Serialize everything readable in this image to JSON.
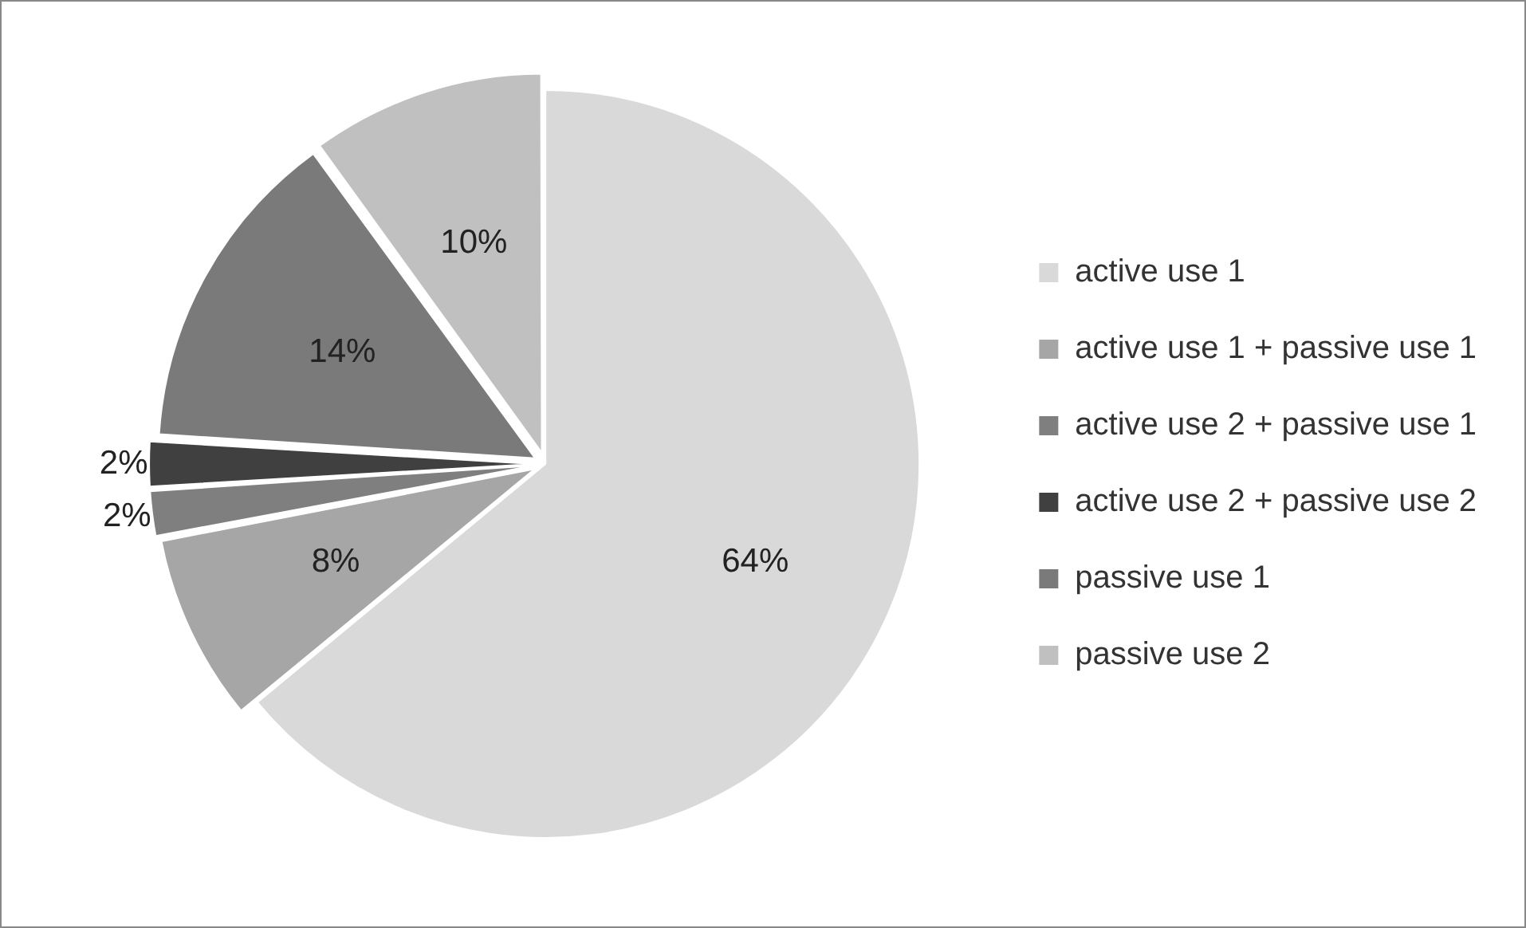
{
  "chart_data": {
    "type": "pie",
    "categories": [
      "active use 1",
      "active use 1 + passive use 1",
      "active use 2 + passive use 1",
      "active use 2 + passive use 2",
      "passive use 1",
      "passive use 2"
    ],
    "values": [
      64,
      8,
      2,
      2,
      14,
      10
    ],
    "value_labels": [
      "64%",
      "8%",
      "2%",
      "2%",
      "14%",
      "10%"
    ],
    "colors": [
      "#d9d9d9",
      "#a6a6a6",
      "#7f7f7f",
      "#404040",
      "#7a7a7a",
      "#c0c0c0"
    ],
    "legend": "right"
  }
}
